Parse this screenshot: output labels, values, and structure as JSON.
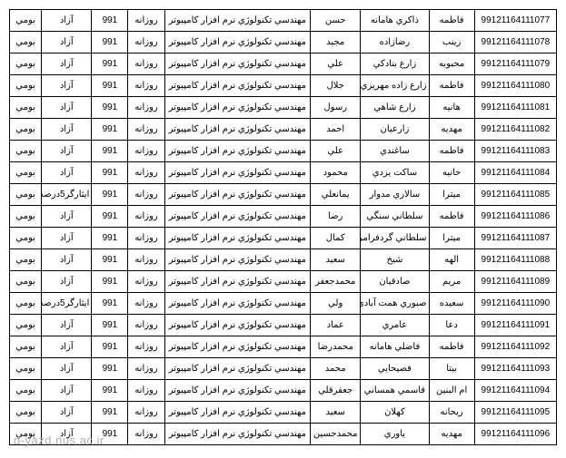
{
  "watermark": "d-yazd.nus.ac.ir",
  "table": {
    "columns": [
      "id",
      "first",
      "last",
      "name2",
      "major",
      "type",
      "code",
      "status",
      "local"
    ],
    "rows": [
      [
        "99121164111077",
        "فاطمه",
        "ذاکري هامانه",
        "حسن",
        "مهندسي تکنولوژي نرم افزار کامپيوتر",
        "روزانه",
        "991",
        "آزاد",
        "بومي"
      ],
      [
        "99121164111078",
        "زينب",
        "رضازاده",
        "مجيد",
        "مهندسي تکنولوژي نرم افزار کامپيوتر",
        "روزانه",
        "991",
        "آزاد",
        "بومي"
      ],
      [
        "99121164111079",
        "محبوبه",
        "زارع بنادکي",
        "علي",
        "مهندسي تکنولوژي نرم افزار کامپيوتر",
        "روزانه",
        "991",
        "آزاد",
        "بومي"
      ],
      [
        "99121164111080",
        "فاطمه",
        "زارع زاده مهريزي",
        "جلال",
        "مهندسي تکنولوژي نرم افزار کامپيوتر",
        "روزانه",
        "991",
        "آزاد",
        "بومي"
      ],
      [
        "99121164111081",
        "هانيه",
        "زارع شاهي",
        "رسول",
        "مهندسي تکنولوژي نرم افزار کامپيوتر",
        "روزانه",
        "991",
        "آزاد",
        "بومي"
      ],
      [
        "99121164111082",
        "مهديه",
        "زارعيان",
        "احمد",
        "مهندسي تکنولوژي نرم افزار کامپيوتر",
        "روزانه",
        "991",
        "آزاد",
        "بومي"
      ],
      [
        "99121164111083",
        "فاطمه",
        "ساغندي",
        "علي",
        "مهندسي تکنولوژي نرم افزار کامپيوتر",
        "روزانه",
        "991",
        "آزاد",
        "بومي"
      ],
      [
        "99121164111084",
        "حانيه",
        "ساکت يزدي",
        "محمود",
        "مهندسي تکنولوژي نرم افزار کامپيوتر",
        "روزانه",
        "991",
        "آزاد",
        "بومي"
      ],
      [
        "99121164111085",
        "ميترا",
        "سالاري مدوار",
        "يمانعلي",
        "مهندسي تکنولوژي نرم افزار کامپيوتر",
        "روزانه",
        "991",
        "ايثارگر5درصد",
        "بومي"
      ],
      [
        "99121164111086",
        "فاطمه",
        "سلطاني سنگي",
        "رضا",
        "مهندسي تکنولوژي نرم افزار کامپيوتر",
        "روزانه",
        "991",
        "آزاد",
        "بومي"
      ],
      [
        "99121164111087",
        "ميترا",
        "سلطاني گردفرامرزي",
        "کمال",
        "مهندسي تکنولوژي نرم افزار کامپيوتر",
        "روزانه",
        "991",
        "آزاد",
        "بومي"
      ],
      [
        "99121164111088",
        "الهه",
        "شيخ",
        "سعيد",
        "مهندسي تکنولوژي نرم افزار کامپيوتر",
        "روزانه",
        "991",
        "آزاد",
        "بومي"
      ],
      [
        "99121164111089",
        "مريم",
        "صادقيان",
        "محمدجعفر",
        "مهندسي تکنولوژي نرم افزار کامپيوتر",
        "روزانه",
        "991",
        "آزاد",
        "بومي"
      ],
      [
        "99121164111090",
        "سعيده",
        "صبوري همت آبادي",
        "ولي",
        "مهندسي تکنولوژي نرم افزار کامپيوتر",
        "روزانه",
        "991",
        "ايثارگر5درصد",
        "بومي"
      ],
      [
        "99121164111091",
        "دعا",
        "عامري",
        "عماد",
        "مهندسي تکنولوژي نرم افزار کامپيوتر",
        "روزانه",
        "991",
        "آزاد",
        "بومي"
      ],
      [
        "99121164111092",
        "فاطمه",
        "فاضلي هامانه",
        "محمدرضا",
        "مهندسي تکنولوژي نرم افزار کامپيوتر",
        "روزانه",
        "991",
        "آزاد",
        "بومي"
      ],
      [
        "99121164111093",
        "بيتا",
        "فصيحايي",
        "محمد",
        "مهندسي تکنولوژي نرم افزار کامپيوتر",
        "روزانه",
        "991",
        "آزاد",
        "بومي"
      ],
      [
        "99121164111094",
        "ام البنين",
        "قاسمي همساني",
        "جعفرقلي",
        "مهندسي تکنولوژي نرم افزار کامپيوتر",
        "روزانه",
        "991",
        "آزاد",
        "بومي"
      ],
      [
        "99121164111095",
        "ريحانه",
        "کهلان",
        "سعيد",
        "مهندسي تکنولوژي نرم افزار کامپيوتر",
        "روزانه",
        "991",
        "آزاد",
        "بومي"
      ],
      [
        "99121164111096",
        "مهديه",
        "ياوري",
        "محمدحسين",
        "مهندسي تکنولوژي نرم افزار کامپيوتر",
        "روزانه",
        "991",
        "آزاد",
        "بومي"
      ]
    ]
  }
}
